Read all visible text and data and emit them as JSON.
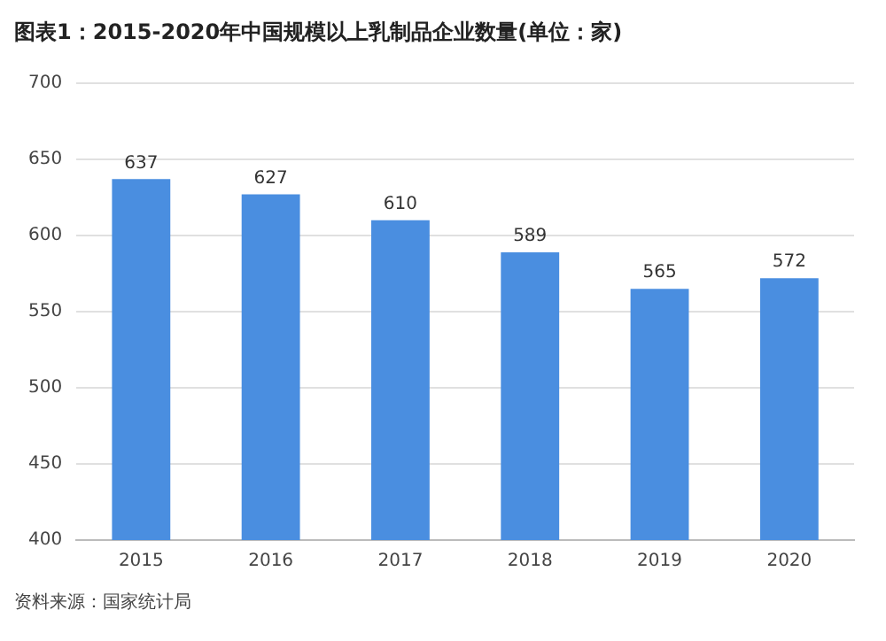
{
  "chart_data": {
    "type": "bar",
    "title": "图表1：2015-2020年中国规模以上乳制品企业数量(单位：家)",
    "categories": [
      "2015",
      "2016",
      "2017",
      "2018",
      "2019",
      "2020"
    ],
    "values": [
      637,
      627,
      610,
      589,
      565,
      572
    ],
    "color": "#4a8ee0",
    "ylim": [
      400,
      700
    ],
    "yticks": [
      400,
      450,
      500,
      550,
      600,
      650,
      700
    ],
    "grid": "y",
    "data_labels": true,
    "annotations": [
      "资料来源：国家统计局"
    ]
  }
}
